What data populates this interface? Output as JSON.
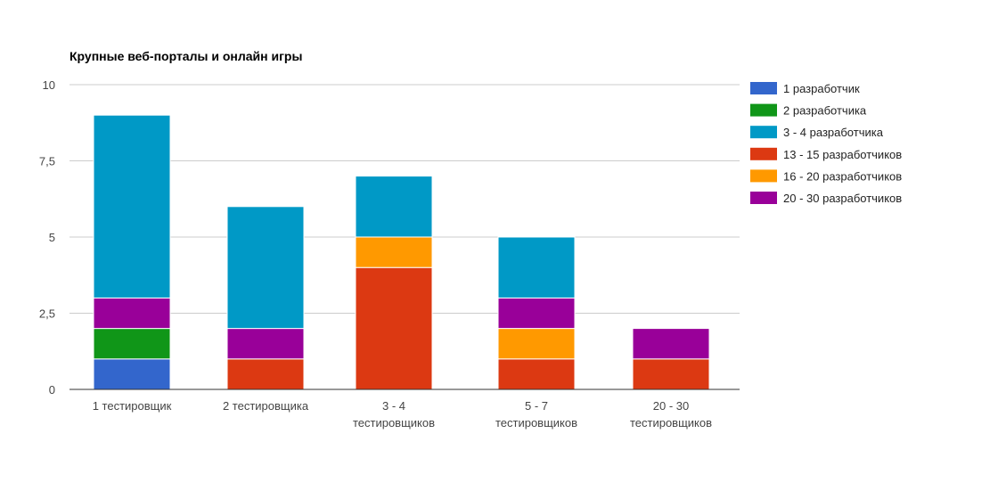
{
  "chart_data": {
    "type": "bar",
    "stacked": true,
    "title": "Крупные веб-порталы и онлайн игры",
    "xlabel": "",
    "ylabel": "",
    "ylim": [
      0,
      10
    ],
    "yticks": [
      "0",
      "2,5",
      "5",
      "7,5",
      "10"
    ],
    "ytick_values": [
      0,
      2.5,
      5,
      7.5,
      10
    ],
    "grid": true,
    "legend_position": "right",
    "categories": [
      [
        "1 тестировщик"
      ],
      [
        "2 тестировщика"
      ],
      [
        "3 - 4",
        "тестировщиков"
      ],
      [
        "5 - 7",
        "тестировщиков"
      ],
      [
        "20 - 30",
        "тестировщиков"
      ]
    ],
    "series": [
      {
        "name": "1 разработчик",
        "color": "#3366cc",
        "values": [
          1,
          0,
          0,
          0,
          0
        ]
      },
      {
        "name": "2 разработчика",
        "color": "#109618",
        "values": [
          1,
          0,
          0,
          0,
          0
        ]
      },
      {
        "name": "3 - 4 разработчика",
        "color": "#0099c6",
        "values": [
          6,
          4,
          2,
          2,
          0
        ]
      },
      {
        "name": "13 - 15 разработчиков",
        "color": "#dc3912",
        "values": [
          0,
          1,
          4,
          1,
          1
        ]
      },
      {
        "name": "16 - 20 разработчиков",
        "color": "#ff9900",
        "values": [
          0,
          0,
          1,
          1,
          0
        ]
      },
      {
        "name": "20 - 30 разработчиков",
        "color": "#990099",
        "values": [
          1,
          1,
          0,
          1,
          1
        ]
      }
    ],
    "stack_order": [
      0,
      1,
      3,
      4,
      5,
      2
    ]
  }
}
